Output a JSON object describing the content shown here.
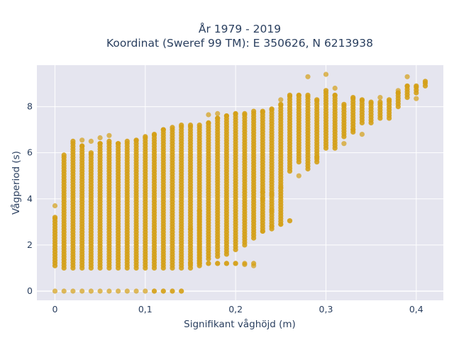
{
  "chart_data": {
    "type": "scatter",
    "title_line1": "År 1979 - 2019",
    "title_line2": "Koordinat (Sweref 99 TM): E 350626, N 6213938",
    "xlabel": "Signifikant våghöjd (m)",
    "ylabel": "Vågperiod (s)",
    "xlim": [
      -0.02,
      0.43
    ],
    "ylim": [
      -0.4,
      9.8
    ],
    "xticks": [
      0,
      0.1,
      0.2,
      0.3,
      0.4
    ],
    "xtick_labels": [
      "0",
      "0,1",
      "0,2",
      "0,3",
      "0,4"
    ],
    "yticks": [
      0,
      2,
      4,
      6,
      8
    ],
    "ytick_labels": [
      "0",
      "2",
      "4",
      "6",
      "8"
    ],
    "grid": true,
    "legend": "none",
    "colors": {
      "marker": "#d4a017",
      "plot_bg": "#e5e5ef",
      "grid": "#ffffff",
      "text": "#2a3f5f"
    },
    "columns": [
      {
        "x": 0.0,
        "ranges": [
          [
            1.1,
            3.2
          ]
        ],
        "points": [
          0,
          3.7
        ]
      },
      {
        "x": 0.01,
        "ranges": [
          [
            1.0,
            5.9
          ]
        ],
        "points": [
          0
        ]
      },
      {
        "x": 0.02,
        "ranges": [
          [
            1.0,
            6.5
          ]
        ],
        "points": [
          0
        ]
      },
      {
        "x": 0.03,
        "ranges": [
          [
            1.0,
            6.3
          ]
        ],
        "points": [
          0,
          6.55
        ]
      },
      {
        "x": 0.04,
        "ranges": [
          [
            1.0,
            6.0
          ]
        ],
        "points": [
          0,
          6.5
        ]
      },
      {
        "x": 0.05,
        "ranges": [
          [
            1.0,
            6.4
          ]
        ],
        "points": [
          0,
          6.65
        ]
      },
      {
        "x": 0.06,
        "ranges": [
          [
            1.0,
            6.5
          ]
        ],
        "points": [
          0,
          6.75
        ]
      },
      {
        "x": 0.07,
        "ranges": [
          [
            1.0,
            6.4
          ]
        ],
        "points": [
          0
        ]
      },
      {
        "x": 0.08,
        "ranges": [
          [
            1.0,
            6.5
          ]
        ],
        "points": [
          0
        ]
      },
      {
        "x": 0.09,
        "ranges": [
          [
            1.0,
            6.55
          ]
        ],
        "points": [
          0
        ]
      },
      {
        "x": 0.1,
        "ranges": [
          [
            1.0,
            6.7
          ]
        ],
        "points": [
          0
        ]
      },
      {
        "x": 0.11,
        "ranges": [
          [
            1.0,
            6.8
          ]
        ],
        "points": [
          0
        ]
      },
      {
        "x": 0.12,
        "ranges": [
          [
            1.0,
            7.0
          ]
        ],
        "points": [
          0
        ]
      },
      {
        "x": 0.13,
        "ranges": [
          [
            1.0,
            7.1
          ]
        ],
        "points": [
          0
        ]
      },
      {
        "x": 0.14,
        "ranges": [
          [
            1.0,
            7.2
          ]
        ],
        "points": [
          0
        ]
      },
      {
        "x": 0.15,
        "ranges": [
          [
            1.0,
            7.2
          ]
        ],
        "points": [
          2.7
        ]
      },
      {
        "x": 0.16,
        "ranges": [
          [
            1.1,
            7.2
          ],
          [
            1.3,
            3.5
          ]
        ],
        "points": [
          1.2
        ]
      },
      {
        "x": 0.17,
        "ranges": [
          [
            1.4,
            7.3
          ]
        ],
        "points": [
          1.2,
          7.65
        ]
      },
      {
        "x": 0.18,
        "ranges": [
          [
            1.5,
            7.5
          ]
        ],
        "points": [
          1.2,
          7.7
        ]
      },
      {
        "x": 0.19,
        "ranges": [
          [
            1.6,
            7.6
          ]
        ],
        "points": [
          1.2
        ]
      },
      {
        "x": 0.2,
        "ranges": [
          [
            1.8,
            7.7
          ]
        ],
        "points": [
          1.2
        ]
      },
      {
        "x": 0.21,
        "ranges": [
          [
            2.0,
            7.7
          ]
        ],
        "points": [
          1.15
        ]
      },
      {
        "x": 0.22,
        "ranges": [
          [
            2.3,
            7.8
          ]
        ],
        "points": [
          1.1
        ]
      },
      {
        "x": 0.23,
        "ranges": [
          [
            2.6,
            7.8
          ]
        ],
        "points": [
          4.3
        ]
      },
      {
        "x": 0.24,
        "ranges": [
          [
            2.7,
            7.9
          ]
        ],
        "points": [
          3.5
        ]
      },
      {
        "x": 0.25,
        "ranges": [
          [
            2.9,
            8.1
          ]
        ],
        "points": [
          4.5,
          8.3
        ]
      },
      {
        "x": 0.26,
        "ranges": [
          [
            5.2,
            8.5
          ]
        ],
        "points": [
          3.05
        ]
      },
      {
        "x": 0.27,
        "ranges": [
          [
            5.6,
            8.5
          ]
        ],
        "points": [
          5.0
        ]
      },
      {
        "x": 0.28,
        "ranges": [
          [
            5.3,
            8.5
          ]
        ],
        "points": [
          9.3
        ]
      },
      {
        "x": 0.29,
        "ranges": [
          [
            5.6,
            8.3
          ]
        ],
        "points": [
          5.8
        ]
      },
      {
        "x": 0.3,
        "ranges": [
          [
            6.2,
            8.7
          ]
        ],
        "points": [
          9.4
        ]
      },
      {
        "x": 0.31,
        "ranges": [
          [
            6.2,
            8.5
          ]
        ],
        "points": [
          8.8
        ]
      },
      {
        "x": 0.32,
        "ranges": [
          [
            6.7,
            8.1
          ]
        ],
        "points": [
          6.4
        ]
      },
      {
        "x": 0.33,
        "ranges": [
          [
            6.9,
            8.4
          ]
        ],
        "points": [
          7.0
        ]
      },
      {
        "x": 0.34,
        "ranges": [
          [
            7.3,
            8.3
          ]
        ],
        "points": [
          6.8
        ]
      },
      {
        "x": 0.35,
        "ranges": [
          [
            7.3,
            8.2
          ]
        ],
        "points": []
      },
      {
        "x": 0.36,
        "ranges": [
          [
            7.5,
            8.2
          ]
        ],
        "points": [
          8.4
        ]
      },
      {
        "x": 0.37,
        "ranges": [
          [
            7.5,
            8.3
          ]
        ],
        "points": []
      },
      {
        "x": 0.38,
        "ranges": [
          [
            8.0,
            8.6
          ]
        ],
        "points": [
          8.7
        ]
      },
      {
        "x": 0.39,
        "ranges": [
          [
            8.4,
            8.9
          ]
        ],
        "points": [
          9.3
        ]
      },
      {
        "x": 0.4,
        "ranges": [
          [
            8.6,
            8.9
          ]
        ],
        "points": [
          8.35
        ]
      },
      {
        "x": 0.41,
        "ranges": [
          [
            8.9,
            9.1
          ]
        ],
        "points": []
      }
    ],
    "zero_row": {
      "y": 0,
      "x": [
        0.11,
        0.12,
        0.13,
        0.14
      ]
    },
    "low_row": {
      "y": 1.2,
      "x": [
        0.15,
        0.16,
        0.17,
        0.18,
        0.19,
        0.2,
        0.21,
        0.22
      ]
    },
    "side_row": {
      "points": [
        [
          0.23,
          2.6
        ],
        [
          0.24,
          2.8
        ],
        [
          0.25,
          2.9
        ],
        [
          0.26,
          3.05
        ],
        [
          0.24,
          4.2
        ],
        [
          0.23,
          4.0
        ]
      ]
    }
  }
}
